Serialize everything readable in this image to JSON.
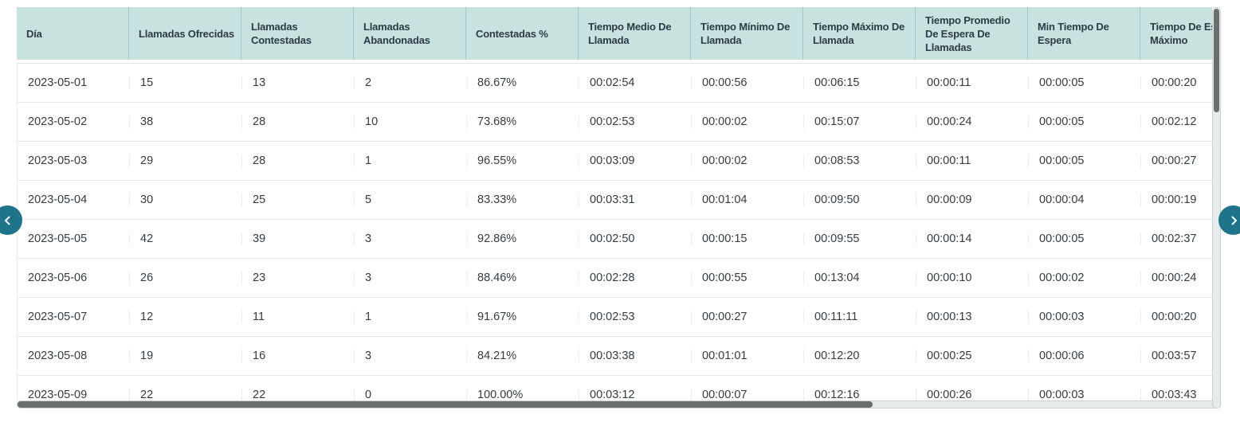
{
  "table": {
    "columns": [
      {
        "key": "dia",
        "label": "Día"
      },
      {
        "key": "llamadas_ofrecidas",
        "label": "Llamadas Ofrecidas"
      },
      {
        "key": "llamadas_contestadas",
        "label": "Llamadas Contestadas"
      },
      {
        "key": "llamadas_abandonadas",
        "label": "Llamadas Abandonadas"
      },
      {
        "key": "contestadas_pct",
        "label": "Contestadas %"
      },
      {
        "key": "tiempo_medio_de_llamada",
        "label": "Tiempo Medio De Llamada"
      },
      {
        "key": "tiempo_minimo_de_llamada",
        "label": "Tiempo Mínimo De Llamada"
      },
      {
        "key": "tiempo_maximo_de_llamada",
        "label": "Tiempo Máximo De Llamada"
      },
      {
        "key": "tiempo_promedio_de_espera_de_llamadas",
        "label": "Tiempo Promedio De Espera De Llamadas"
      },
      {
        "key": "min_tiempo_de_espera",
        "label": "Min Tiempo De Espera"
      },
      {
        "key": "tiempo_de_espera_maximo",
        "label": "Tiempo De Espera Máximo"
      }
    ],
    "rows": [
      [
        "2023-05-01",
        "15",
        "13",
        "2",
        "86.67%",
        "00:02:54",
        "00:00:56",
        "00:06:15",
        "00:00:11",
        "00:00:05",
        "00:00:20"
      ],
      [
        "2023-05-02",
        "38",
        "28",
        "10",
        "73.68%",
        "00:02:53",
        "00:00:02",
        "00:15:07",
        "00:00:24",
        "00:00:05",
        "00:02:12"
      ],
      [
        "2023-05-03",
        "29",
        "28",
        "1",
        "96.55%",
        "00:03:09",
        "00:00:02",
        "00:08:53",
        "00:00:11",
        "00:00:05",
        "00:00:27"
      ],
      [
        "2023-05-04",
        "30",
        "25",
        "5",
        "83.33%",
        "00:03:31",
        "00:01:04",
        "00:09:50",
        "00:00:09",
        "00:00:04",
        "00:00:19"
      ],
      [
        "2023-05-05",
        "42",
        "39",
        "3",
        "92.86%",
        "00:02:50",
        "00:00:15",
        "00:09:55",
        "00:00:14",
        "00:00:05",
        "00:02:37"
      ],
      [
        "2023-05-06",
        "26",
        "23",
        "3",
        "88.46%",
        "00:02:28",
        "00:00:55",
        "00:13:04",
        "00:00:10",
        "00:00:02",
        "00:00:24"
      ],
      [
        "2023-05-07",
        "12",
        "11",
        "1",
        "91.67%",
        "00:02:53",
        "00:00:27",
        "00:11:11",
        "00:00:13",
        "00:00:03",
        "00:00:20"
      ],
      [
        "2023-05-08",
        "19",
        "16",
        "3",
        "84.21%",
        "00:03:38",
        "00:01:01",
        "00:12:20",
        "00:00:25",
        "00:00:06",
        "00:03:57"
      ],
      [
        "2023-05-09",
        "22",
        "22",
        "0",
        "100.00%",
        "00:03:12",
        "00:00:07",
        "00:12:16",
        "00:00:26",
        "00:00:03",
        "00:03:43"
      ]
    ]
  },
  "nav": {
    "prev_icon": "chevron-left",
    "next_icon": "chevron-right"
  },
  "colors": {
    "header_bg": "#c8e3df",
    "header_divider": "#9ecac4",
    "header_text": "#2c3b47",
    "body_text": "#343b43",
    "row_border": "#e4e7e8",
    "nav_button": "#20748a",
    "scroll_thumb": "#6b6e6e",
    "scroll_track": "#e7ebeb"
  }
}
